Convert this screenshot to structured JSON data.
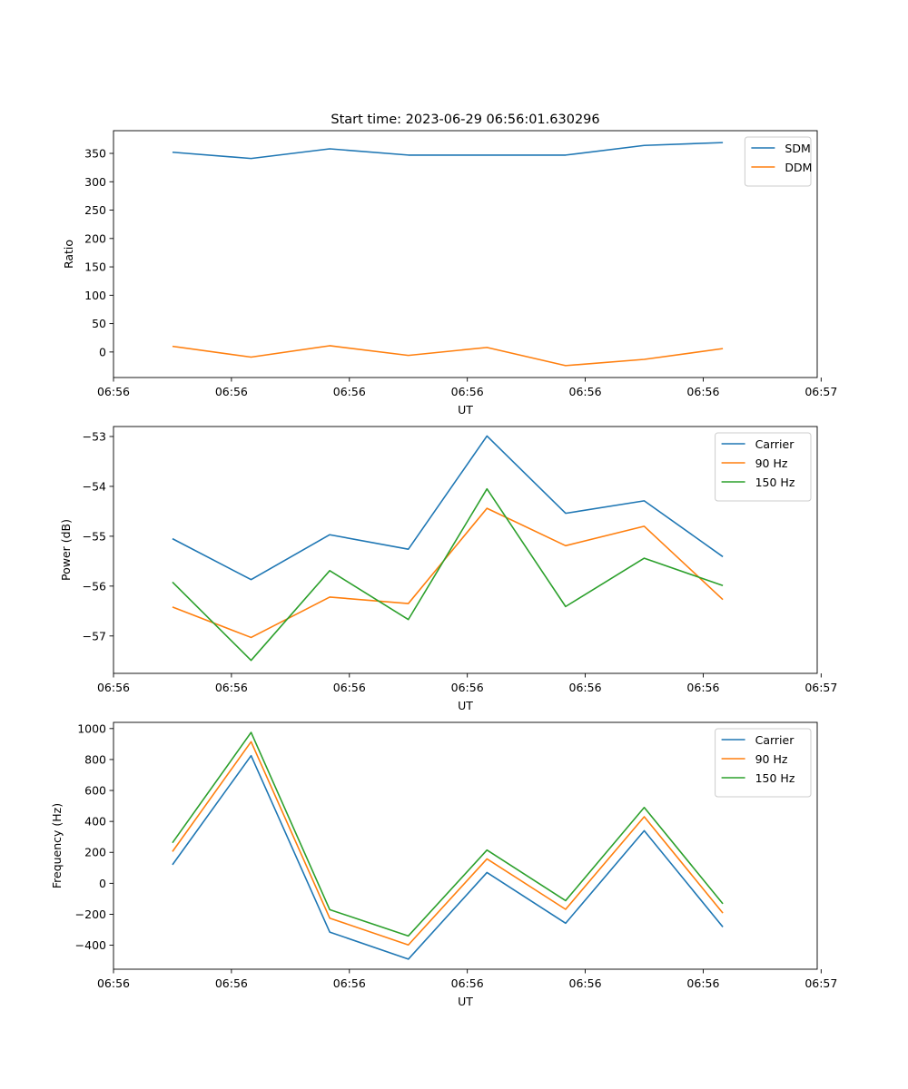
{
  "figure": {
    "title": "Start time: 2023-06-29 06:56:01.630296"
  },
  "chart_data": [
    {
      "type": "line",
      "title": "Start time: 2023-06-29 06:56:01.630296",
      "xlabel": "UT",
      "ylabel": "Ratio",
      "x": [
        1,
        2,
        3,
        4,
        5,
        6,
        7,
        8
      ],
      "xlim": [
        0.25,
        9.2
      ],
      "x_ticks": [
        0.25,
        1.75,
        3.25,
        4.75,
        6.25,
        7.75,
        9.25
      ],
      "x_tick_labels": [
        "06:56",
        "06:56",
        "06:56",
        "06:56",
        "06:56",
        "06:56",
        "06:57"
      ],
      "ylim": [
        -45,
        390
      ],
      "y_ticks": [
        0,
        50,
        100,
        150,
        200,
        250,
        300,
        350
      ],
      "y_tick_labels": [
        "0",
        "50",
        "100",
        "150",
        "200",
        "250",
        "300",
        "350"
      ],
      "legend": "top-right",
      "grid": false,
      "series": [
        {
          "name": "SDM",
          "color": "#1f77b4",
          "values": [
            352,
            341,
            358,
            347,
            347,
            347,
            364,
            369
          ]
        },
        {
          "name": "DDM",
          "color": "#ff7f0e",
          "values": [
            10,
            -9,
            11,
            -6,
            8,
            -24,
            -13,
            6
          ]
        }
      ]
    },
    {
      "type": "line",
      "xlabel": "UT",
      "ylabel": "Power (dB)",
      "x": [
        1,
        2,
        3,
        4,
        5,
        6,
        7,
        8
      ],
      "xlim": [
        0.25,
        9.2
      ],
      "x_ticks": [
        0.25,
        1.75,
        3.25,
        4.75,
        6.25,
        7.75,
        9.25
      ],
      "x_tick_labels": [
        "06:56",
        "06:56",
        "06:56",
        "06:56",
        "06:56",
        "06:56",
        "06:57"
      ],
      "ylim": [
        -57.75,
        -52.8
      ],
      "y_ticks": [
        -57,
        -56,
        -55,
        -54,
        -53
      ],
      "y_tick_labels": [
        "−57",
        "−56",
        "−55",
        "−54",
        "−53"
      ],
      "legend": "top-right",
      "grid": false,
      "series": [
        {
          "name": "Carrier",
          "color": "#1f77b4",
          "values": [
            -55.05,
            -55.87,
            -54.97,
            -55.26,
            -52.99,
            -54.54,
            -54.29,
            -55.41
          ]
        },
        {
          "name": "90 Hz",
          "color": "#ff7f0e",
          "values": [
            -56.42,
            -57.03,
            -56.22,
            -56.35,
            -54.44,
            -55.19,
            -54.8,
            -56.27
          ]
        },
        {
          "name": "150 Hz",
          "color": "#2ca02c",
          "values": [
            -55.92,
            -57.49,
            -55.69,
            -56.67,
            -54.05,
            -56.41,
            -55.44,
            -55.99
          ]
        }
      ]
    },
    {
      "type": "line",
      "xlabel": "UT",
      "ylabel": "Frequency (Hz)",
      "x": [
        1,
        2,
        3,
        4,
        5,
        6,
        7,
        8
      ],
      "xlim": [
        0.25,
        9.2
      ],
      "x_ticks": [
        0.25,
        1.75,
        3.25,
        4.75,
        6.25,
        7.75,
        9.25
      ],
      "x_tick_labels": [
        "06:56",
        "06:56",
        "06:56",
        "06:56",
        "06:56",
        "06:56",
        "06:57"
      ],
      "ylim": [
        -555,
        1040
      ],
      "y_ticks": [
        -400,
        -200,
        0,
        200,
        400,
        600,
        800,
        1000
      ],
      "y_tick_labels": [
        "−400",
        "−200",
        "0",
        "200",
        "400",
        "600",
        "800",
        "1000"
      ],
      "legend": "top-right",
      "grid": false,
      "series": [
        {
          "name": "Carrier",
          "color": "#1f77b4",
          "values": [
            120,
            825,
            -315,
            -490,
            70,
            -258,
            340,
            -282
          ]
        },
        {
          "name": "90 Hz",
          "color": "#ff7f0e",
          "values": [
            205,
            915,
            -225,
            -398,
            158,
            -168,
            430,
            -192
          ]
        },
        {
          "name": "150 Hz",
          "color": "#2ca02c",
          "values": [
            262,
            975,
            -170,
            -340,
            215,
            -112,
            490,
            -132
          ]
        }
      ]
    }
  ]
}
